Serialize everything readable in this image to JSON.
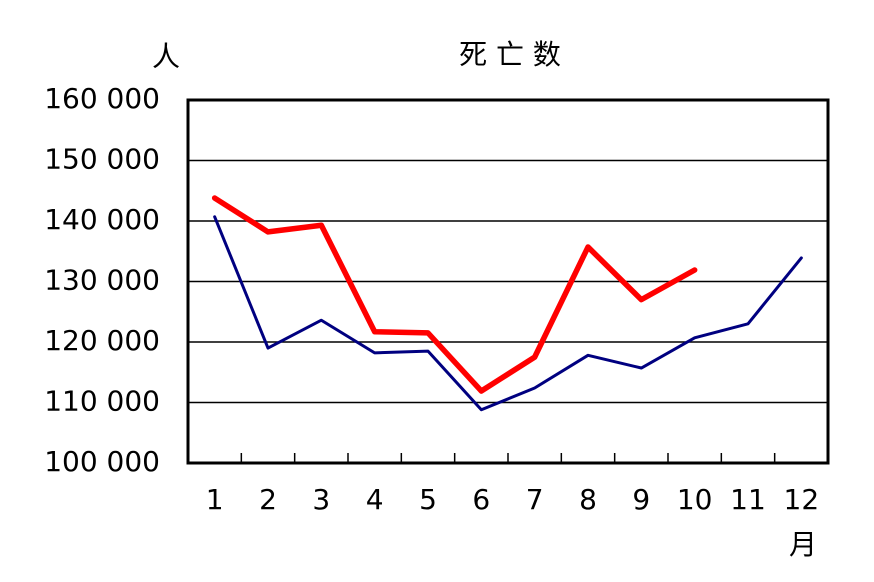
{
  "chart_data": {
    "type": "line",
    "title": "死 亡 数",
    "y_label": "人",
    "x_label": "月",
    "categories": [
      "1",
      "2",
      "3",
      "4",
      "5",
      "6",
      "7",
      "8",
      "9",
      "10",
      "11",
      "12"
    ],
    "series": [
      {
        "color": "#000080",
        "values": [
          140700,
          119000,
          123600,
          118200,
          118500,
          108800,
          112400,
          117800,
          115700,
          120700,
          123000,
          133900
        ]
      },
      {
        "color": "#ff0000",
        "values": [
          143800,
          138200,
          139300,
          121700,
          121500,
          111900,
          117500,
          135700,
          127000,
          131900,
          null,
          null
        ]
      }
    ],
    "ylim": [
      100000,
      160000
    ],
    "yticks": [
      {
        "value": 100000,
        "label": "100 000"
      },
      {
        "value": 110000,
        "label": "110 000"
      },
      {
        "value": 120000,
        "label": "120 000"
      },
      {
        "value": 130000,
        "label": "130 000"
      },
      {
        "value": 140000,
        "label": "140 000"
      },
      {
        "value": 150000,
        "label": "150 000"
      },
      {
        "value": 160000,
        "label": "160 000"
      }
    ],
    "grid": true
  }
}
